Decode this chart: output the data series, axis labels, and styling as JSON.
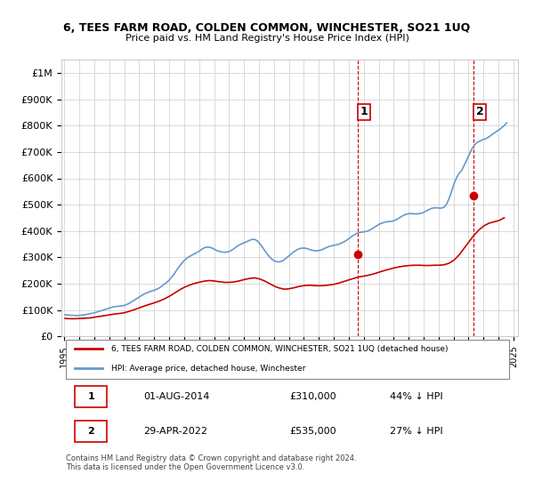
{
  "title": "6, TEES FARM ROAD, COLDEN COMMON, WINCHESTER, SO21 1UQ",
  "subtitle": "Price paid vs. HM Land Registry's House Price Index (HPI)",
  "xlabel": "",
  "ylabel": "",
  "ylim": [
    0,
    1050000
  ],
  "yticks": [
    0,
    100000,
    200000,
    300000,
    400000,
    500000,
    600000,
    700000,
    800000,
    900000,
    1000000
  ],
  "ytick_labels": [
    "£0",
    "£100K",
    "£200K",
    "£300K",
    "£400K",
    "£500K",
    "£600K",
    "£700K",
    "£800K",
    "£900K",
    "£1M"
  ],
  "hpi_color": "#6699cc",
  "price_color": "#cc0000",
  "annotation1_color": "#cc0000",
  "annotation2_color": "#cc0000",
  "vline_color": "#cc0000",
  "background_color": "#ffffff",
  "grid_color": "#cccccc",
  "transaction1_date": 2014.583,
  "transaction1_price": 310000,
  "transaction1_label": "1",
  "transaction2_date": 2022.33,
  "transaction2_price": 535000,
  "transaction2_label": "2",
  "legend_label_red": "6, TEES FARM ROAD, COLDEN COMMON, WINCHESTER, SO21 1UQ (detached house)",
  "legend_label_blue": "HPI: Average price, detached house, Winchester",
  "table_row1": [
    "1",
    "01-AUG-2014",
    "£310,000",
    "44% ↓ HPI"
  ],
  "table_row2": [
    "2",
    "29-APR-2022",
    "£535,000",
    "27% ↓ HPI"
  ],
  "footnote": "Contains HM Land Registry data © Crown copyright and database right 2024.\nThis data is licensed under the Open Government Licence v3.0.",
  "hpi_data": {
    "years": [
      1995.04,
      1995.21,
      1995.38,
      1995.54,
      1995.71,
      1995.88,
      1996.04,
      1996.21,
      1996.38,
      1996.54,
      1996.71,
      1996.88,
      1997.04,
      1997.21,
      1997.38,
      1997.54,
      1997.71,
      1997.88,
      1998.04,
      1998.21,
      1998.38,
      1998.54,
      1998.71,
      1998.88,
      1999.04,
      1999.21,
      1999.38,
      1999.54,
      1999.71,
      1999.88,
      2000.04,
      2000.21,
      2000.38,
      2000.54,
      2000.71,
      2000.88,
      2001.04,
      2001.21,
      2001.38,
      2001.54,
      2001.71,
      2001.88,
      2002.04,
      2002.21,
      2002.38,
      2002.54,
      2002.71,
      2002.88,
      2003.04,
      2003.21,
      2003.38,
      2003.54,
      2003.71,
      2003.88,
      2004.04,
      2004.21,
      2004.38,
      2004.54,
      2004.71,
      2004.88,
      2005.04,
      2005.21,
      2005.38,
      2005.54,
      2005.71,
      2005.88,
      2006.04,
      2006.21,
      2006.38,
      2006.54,
      2006.71,
      2006.88,
      2007.04,
      2007.21,
      2007.38,
      2007.54,
      2007.71,
      2007.88,
      2008.04,
      2008.21,
      2008.38,
      2008.54,
      2008.71,
      2008.88,
      2009.04,
      2009.21,
      2009.38,
      2009.54,
      2009.71,
      2009.88,
      2010.04,
      2010.21,
      2010.38,
      2010.54,
      2010.71,
      2010.88,
      2011.04,
      2011.21,
      2011.38,
      2011.54,
      2011.71,
      2011.88,
      2012.04,
      2012.21,
      2012.38,
      2012.54,
      2012.71,
      2012.88,
      2013.04,
      2013.21,
      2013.38,
      2013.54,
      2013.71,
      2013.88,
      2014.04,
      2014.21,
      2014.38,
      2014.54,
      2014.71,
      2014.88,
      2015.04,
      2015.21,
      2015.38,
      2015.54,
      2015.71,
      2015.88,
      2016.04,
      2016.21,
      2016.38,
      2016.54,
      2016.71,
      2016.88,
      2017.04,
      2017.21,
      2017.38,
      2017.54,
      2017.71,
      2017.88,
      2018.04,
      2018.21,
      2018.38,
      2018.54,
      2018.71,
      2018.88,
      2019.04,
      2019.21,
      2019.38,
      2019.54,
      2019.71,
      2019.88,
      2020.04,
      2020.21,
      2020.38,
      2020.54,
      2020.71,
      2020.88,
      2021.04,
      2021.21,
      2021.38,
      2021.54,
      2021.71,
      2021.88,
      2022.04,
      2022.21,
      2022.38,
      2022.54,
      2022.71,
      2022.88,
      2023.04,
      2023.21,
      2023.38,
      2023.54,
      2023.71,
      2023.88,
      2024.04,
      2024.21,
      2024.38,
      2024.54
    ],
    "values": [
      82000,
      81000,
      80000,
      80000,
      79000,
      79000,
      80000,
      81000,
      82000,
      84000,
      86000,
      88000,
      90000,
      93000,
      96000,
      99000,
      102000,
      105000,
      108000,
      111000,
      113000,
      114000,
      115000,
      116000,
      118000,
      122000,
      127000,
      133000,
      139000,
      145000,
      151000,
      157000,
      162000,
      166000,
      170000,
      173000,
      176000,
      180000,
      185000,
      192000,
      199000,
      207000,
      216000,
      228000,
      241000,
      255000,
      268000,
      280000,
      290000,
      298000,
      304000,
      309000,
      314000,
      319000,
      325000,
      332000,
      337000,
      339000,
      338000,
      335000,
      330000,
      325000,
      322000,
      320000,
      319000,
      320000,
      323000,
      328000,
      335000,
      342000,
      348000,
      352000,
      356000,
      360000,
      365000,
      368000,
      368000,
      363000,
      353000,
      340000,
      326000,
      313000,
      301000,
      292000,
      286000,
      283000,
      283000,
      286000,
      292000,
      300000,
      308000,
      316000,
      323000,
      329000,
      333000,
      335000,
      335000,
      333000,
      330000,
      327000,
      325000,
      325000,
      326000,
      329000,
      334000,
      338000,
      342000,
      344000,
      346000,
      348000,
      351000,
      355000,
      360000,
      366000,
      373000,
      380000,
      386000,
      391000,
      394000,
      396000,
      397000,
      399000,
      403000,
      408000,
      414000,
      420000,
      426000,
      430000,
      433000,
      435000,
      436000,
      437000,
      440000,
      444000,
      450000,
      456000,
      461000,
      464000,
      466000,
      466000,
      465000,
      465000,
      466000,
      468000,
      472000,
      477000,
      482000,
      486000,
      488000,
      488000,
      487000,
      487000,
      491000,
      503000,
      525000,
      553000,
      581000,
      604000,
      620000,
      630000,
      650000,
      670000,
      690000,
      710000,
      725000,
      735000,
      740000,
      745000,
      748000,
      752000,
      758000,
      765000,
      772000,
      778000,
      784000,
      792000,
      800000,
      810000
    ]
  },
  "price_data": {
    "years": [
      1995.04,
      1995.38,
      1995.71,
      1996.04,
      1996.38,
      1996.71,
      1997.04,
      1997.38,
      1997.71,
      1998.04,
      1998.38,
      1998.71,
      1999.04,
      1999.38,
      1999.71,
      2000.04,
      2000.38,
      2000.71,
      2001.04,
      2001.38,
      2001.71,
      2002.04,
      2002.38,
      2002.71,
      2003.04,
      2003.38,
      2003.71,
      2004.04,
      2004.38,
      2004.71,
      2005.04,
      2005.38,
      2005.71,
      2006.04,
      2006.38,
      2006.71,
      2007.04,
      2007.38,
      2007.71,
      2008.04,
      2008.38,
      2008.71,
      2009.04,
      2009.38,
      2009.71,
      2010.04,
      2010.38,
      2010.71,
      2011.04,
      2011.38,
      2011.71,
      2012.04,
      2012.38,
      2012.71,
      2013.04,
      2013.38,
      2013.71,
      2014.04,
      2014.38,
      2014.71,
      2015.04,
      2015.38,
      2015.71,
      2016.04,
      2016.38,
      2016.71,
      2017.04,
      2017.38,
      2017.71,
      2018.04,
      2018.38,
      2018.71,
      2019.04,
      2019.38,
      2019.71,
      2020.04,
      2020.38,
      2020.71,
      2021.04,
      2021.38,
      2021.71,
      2022.04,
      2022.38,
      2022.71,
      2023.04,
      2023.38,
      2023.71,
      2024.04,
      2024.38
    ],
    "values": [
      68000,
      67000,
      67000,
      68000,
      69000,
      70000,
      73000,
      76000,
      79000,
      82000,
      85000,
      87000,
      90000,
      96000,
      102000,
      109000,
      116000,
      122000,
      128000,
      135000,
      143000,
      153000,
      165000,
      177000,
      187000,
      195000,
      201000,
      206000,
      210000,
      212000,
      210000,
      207000,
      205000,
      205000,
      207000,
      211000,
      216000,
      220000,
      222000,
      218000,
      210000,
      200000,
      190000,
      183000,
      179000,
      181000,
      185000,
      190000,
      193000,
      194000,
      193000,
      192000,
      193000,
      195000,
      198000,
      203000,
      209000,
      215000,
      221000,
      226000,
      229000,
      233000,
      238000,
      244000,
      250000,
      255000,
      260000,
      264000,
      267000,
      269000,
      270000,
      270000,
      269000,
      269000,
      270000,
      270000,
      272000,
      278000,
      290000,
      310000,
      335000,
      360000,
      385000,
      405000,
      420000,
      430000,
      435000,
      440000,
      450000
    ]
  }
}
